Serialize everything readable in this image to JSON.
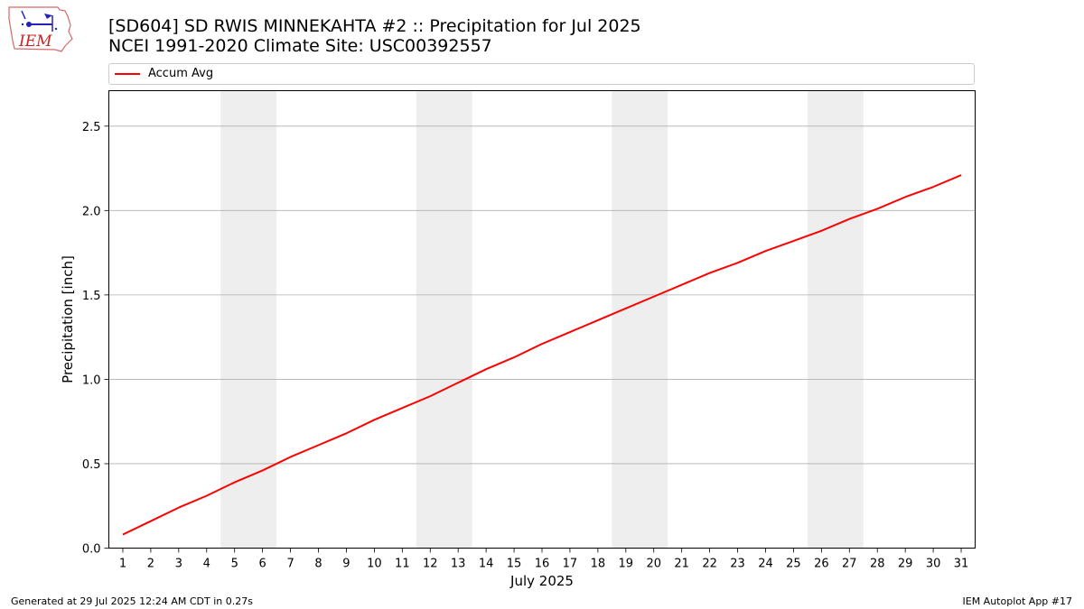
{
  "title_line1": "[SD604] SD RWIS MINNEKAHTA #2 :: Precipitation for Jul 2025",
  "title_line2": "NCEI 1991-2020 Climate Site: USC00392557",
  "logo_text": "IEM",
  "footer_left": "Generated at 29 Jul 2025 12:24 AM CDT in 0.27s",
  "footer_right": "IEM Autoplot App #17",
  "colors": {
    "line": "#ff0000",
    "weekend": "#eeeeee",
    "grid": "#b0b0b0"
  },
  "chart_data": {
    "type": "line",
    "xlabel": "July 2025",
    "ylabel": "Precipitation [inch]",
    "xlim": [
      0.5,
      31.5
    ],
    "ylim": [
      0,
      2.71
    ],
    "x_ticks": [
      1,
      2,
      3,
      4,
      5,
      6,
      7,
      8,
      9,
      10,
      11,
      12,
      13,
      14,
      15,
      16,
      17,
      18,
      19,
      20,
      21,
      22,
      23,
      24,
      25,
      26,
      27,
      28,
      29,
      30,
      31
    ],
    "y_ticks": [
      0.0,
      0.5,
      1.0,
      1.5,
      2.0,
      2.5
    ],
    "y_tick_labels": [
      "0.0",
      "0.5",
      "1.0",
      "1.5",
      "2.0",
      "2.5"
    ],
    "grid": "y",
    "legend_position": "top",
    "shaded_ranges": [
      [
        5,
        6
      ],
      [
        12,
        13
      ],
      [
        19,
        20
      ],
      [
        26,
        27
      ]
    ],
    "series": [
      {
        "name": "Accum Avg",
        "x": [
          1,
          2,
          3,
          4,
          5,
          6,
          7,
          8,
          9,
          10,
          11,
          12,
          13,
          14,
          15,
          16,
          17,
          18,
          19,
          20,
          21,
          22,
          23,
          24,
          25,
          26,
          27,
          28,
          29,
          30,
          31
        ],
        "y": [
          0.08,
          0.16,
          0.24,
          0.31,
          0.39,
          0.46,
          0.54,
          0.61,
          0.68,
          0.76,
          0.83,
          0.9,
          0.98,
          1.06,
          1.13,
          1.21,
          1.28,
          1.35,
          1.42,
          1.49,
          1.56,
          1.63,
          1.69,
          1.76,
          1.82,
          1.88,
          1.95,
          2.01,
          2.08,
          2.14,
          2.21
        ]
      }
    ]
  }
}
